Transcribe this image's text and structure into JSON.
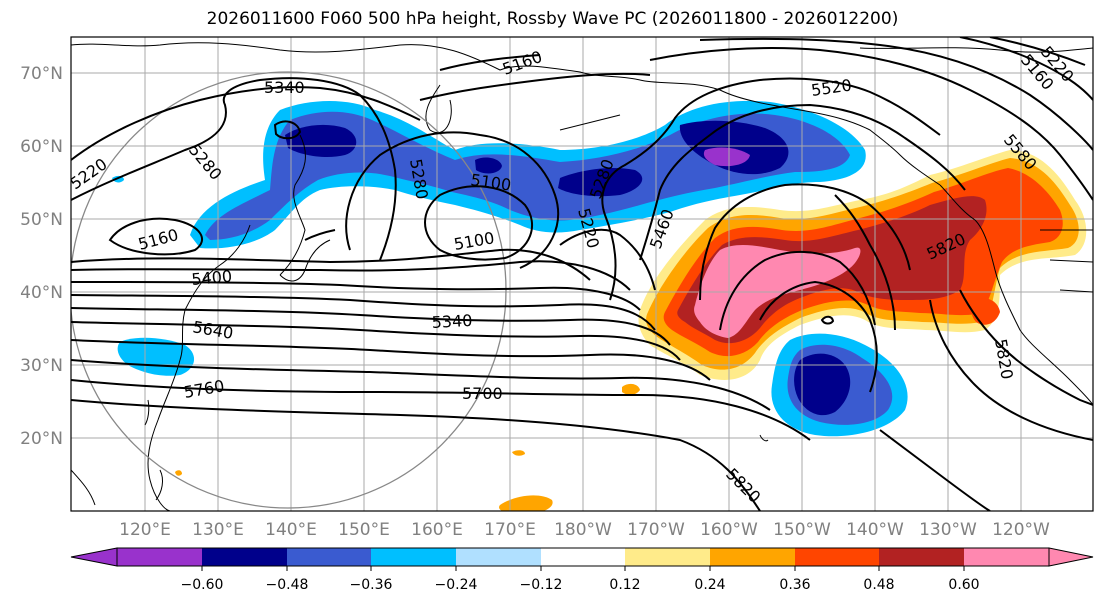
{
  "title": "2026011600 F060 500 hPa height, Rossby Wave PC (2026011800 - 2026012200)",
  "latitude_labels": [
    "70°N",
    "60°N",
    "50°N",
    "40°N",
    "30°N",
    "20°N"
  ],
  "longitude_labels": [
    "120°E",
    "130°E",
    "140°E",
    "150°E",
    "160°E",
    "170°E",
    "180°W",
    "170°W",
    "160°W",
    "150°W",
    "140°W",
    "130°W",
    "120°W"
  ],
  "contour_labels": [
    "5160",
    "5340",
    "5520",
    "5220",
    "5280",
    "5160",
    "5100",
    "5280",
    "5220",
    "5460",
    "5100",
    "5580",
    "5160",
    "5400",
    "5820",
    "5640",
    "5340",
    "5760",
    "5700",
    "5820",
    "5820",
    "5220",
    "5280"
  ],
  "colorbar": {
    "ticks": [
      "−0.60",
      "−0.48",
      "−0.36",
      "−0.24",
      "−0.12",
      "0.12",
      "0.24",
      "0.36",
      "0.48",
      "0.60"
    ],
    "colors": [
      "#9932cc",
      "#00008b",
      "#3a5bd0",
      "#00bfff",
      "#b0e0ff",
      "#ffffff",
      "#ffeb8a",
      "#ffa500",
      "#ff4500",
      "#b22222",
      "#ff88b0"
    ]
  }
}
